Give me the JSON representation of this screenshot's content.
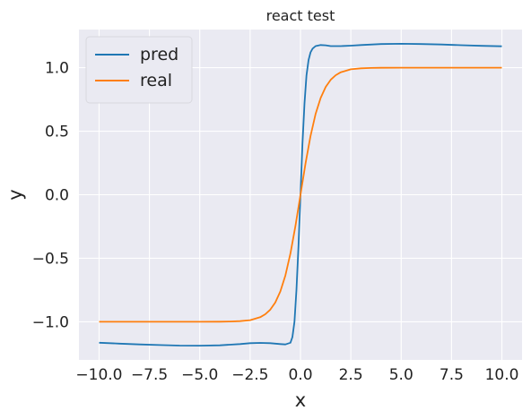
{
  "chart_data": {
    "type": "line",
    "title": "react test",
    "xlabel": "x",
    "ylabel": "y",
    "xlim": [
      -11.0,
      11.0
    ],
    "ylim": [
      -1.3,
      1.3
    ],
    "xticks": [
      -10.0,
      -7.5,
      -5.0,
      -2.5,
      0.0,
      2.5,
      5.0,
      7.5,
      10.0
    ],
    "xtick_labels": [
      "−10.0",
      "−7.5",
      "−5.0",
      "−2.5",
      "0.0",
      "2.5",
      "5.0",
      "7.5",
      "10.0"
    ],
    "yticks": [
      -1.0,
      -0.5,
      0.0,
      0.5,
      1.0
    ],
    "ytick_labels": [
      "−1.0",
      "−0.5",
      "0.0",
      "0.5",
      "1.0"
    ],
    "grid": true,
    "legend_position": "top-left",
    "background": "#eaeaf2",
    "series": [
      {
        "name": "pred",
        "color": "#1f77b4",
        "x": [
          -10,
          -9,
          -8,
          -7,
          -6,
          -5,
          -4,
          -3,
          -2.5,
          -2,
          -1.5,
          -1,
          -0.75,
          -0.5,
          -0.4,
          -0.3,
          -0.2,
          -0.1,
          0,
          0.1,
          0.2,
          0.3,
          0.4,
          0.5,
          0.6,
          0.75,
          1,
          1.25,
          1.5,
          2,
          2.5,
          3,
          4,
          5,
          6,
          7,
          8,
          9,
          10
        ],
        "y": [
          -1.165,
          -1.172,
          -1.178,
          -1.183,
          -1.187,
          -1.188,
          -1.185,
          -1.175,
          -1.168,
          -1.166,
          -1.168,
          -1.175,
          -1.178,
          -1.165,
          -1.12,
          -1.0,
          -0.75,
          -0.4,
          0.0,
          0.4,
          0.72,
          0.94,
          1.06,
          1.12,
          1.15,
          1.17,
          1.178,
          1.176,
          1.17,
          1.17,
          1.173,
          1.178,
          1.186,
          1.188,
          1.186,
          1.182,
          1.177,
          1.172,
          1.168
        ]
      },
      {
        "name": "real",
        "color": "#ff7f0e",
        "x": [
          -10,
          -9,
          -8,
          -7,
          -6,
          -5,
          -4,
          -3.5,
          -3,
          -2.5,
          -2,
          -1.75,
          -1.5,
          -1.25,
          -1,
          -0.75,
          -0.5,
          -0.25,
          0,
          0.25,
          0.5,
          0.75,
          1,
          1.25,
          1.5,
          1.75,
          2,
          2.5,
          3,
          3.5,
          4,
          5,
          6,
          7,
          8,
          9,
          10
        ],
        "y": [
          -1.0,
          -1.0,
          -1.0,
          -1.0,
          -1.0,
          -1.0,
          -0.999,
          -0.998,
          -0.995,
          -0.987,
          -0.964,
          -0.941,
          -0.905,
          -0.848,
          -0.762,
          -0.635,
          -0.462,
          -0.245,
          0.0,
          0.245,
          0.462,
          0.635,
          0.762,
          0.848,
          0.905,
          0.941,
          0.964,
          0.987,
          0.995,
          0.998,
          0.999,
          1.0,
          1.0,
          1.0,
          1.0,
          1.0,
          1.0
        ]
      }
    ]
  }
}
